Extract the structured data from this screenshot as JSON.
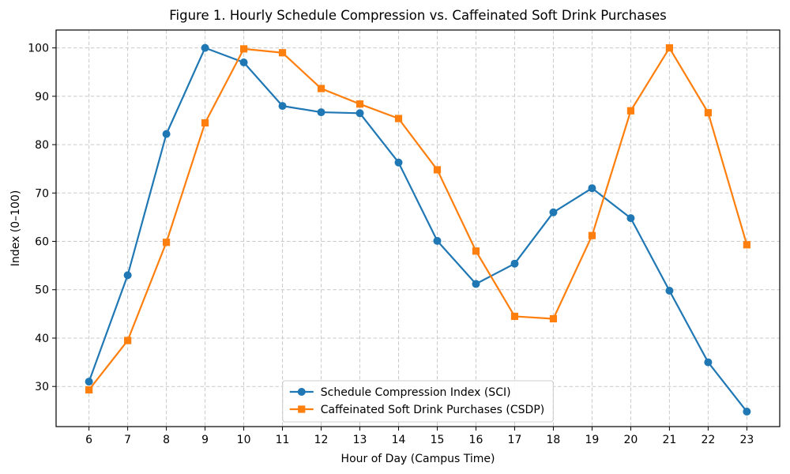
{
  "chart_data": {
    "type": "line",
    "title": "Figure 1. Hourly Schedule Compression vs. Caffeinated Soft Drink Purchases",
    "xlabel": "Hour of Day (Campus Time)",
    "ylabel": "Index (0–100)",
    "x": [
      6,
      7,
      8,
      9,
      10,
      11,
      12,
      13,
      14,
      15,
      16,
      17,
      18,
      19,
      20,
      21,
      22,
      23
    ],
    "xtick_labels": [
      "6",
      "7",
      "8",
      "9",
      "10",
      "11",
      "12",
      "13",
      "14",
      "15",
      "16",
      "17",
      "18",
      "19",
      "20",
      "21",
      "22",
      "23"
    ],
    "yticks": [
      30,
      40,
      50,
      60,
      70,
      80,
      90,
      100
    ],
    "ytick_labels": [
      "30",
      "40",
      "50",
      "60",
      "70",
      "80",
      "90",
      "100"
    ],
    "xlim": [
      5.15,
      23.85
    ],
    "ylim": [
      21.7,
      103.7
    ],
    "grid": true,
    "grid_style": "dashed",
    "legend_position": "lower center",
    "series": [
      {
        "name": "Schedule Compression Index (SCI)",
        "color": "#1f77b4",
        "marker": "circle",
        "values": [
          31.0,
          53.0,
          82.2,
          100.0,
          97.0,
          88.0,
          86.7,
          86.5,
          76.3,
          60.1,
          51.2,
          55.4,
          66.0,
          71.0,
          64.8,
          49.8,
          35.0,
          24.8
        ]
      },
      {
        "name": "Caffeinated Soft Drink Purchases (CSDP)",
        "color": "#ff7f0e",
        "marker": "square",
        "values": [
          29.3,
          39.5,
          59.8,
          84.5,
          99.8,
          99.0,
          91.6,
          88.4,
          85.4,
          74.8,
          58.0,
          44.5,
          44.0,
          61.2,
          87.0,
          100.0,
          86.6,
          59.3
        ]
      }
    ],
    "colors": {
      "background": "#ffffff",
      "spine": "#000000",
      "grid": "#c9c9c9",
      "text": "#000000",
      "legend_border": "#cccccc",
      "legend_background": "#ffffff"
    }
  }
}
